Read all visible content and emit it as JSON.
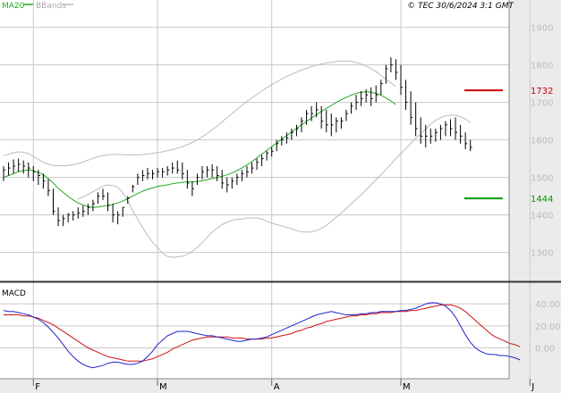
{
  "header": {
    "legend_ma": "MA20",
    "legend_bbands": "BBands",
    "copyright": "© TEC 30/6/2024 3:1 GMT"
  },
  "colors": {
    "ma": "#22aa22",
    "bbands": "#bbbbbb",
    "price": "#000000",
    "resistance": "#cc0000",
    "support": "#009900",
    "macd": "#2222cc",
    "signal": "#cc1111",
    "grid": "#c8c8c8",
    "axis_bg": "#ebebeb"
  },
  "price_panel": {
    "yticks": [
      1300,
      1400,
      1500,
      1600,
      1700,
      1800,
      1900
    ],
    "ylim": [
      1230,
      1930
    ],
    "levels": [
      {
        "name": "resistance",
        "value": 1732,
        "label": "1732"
      },
      {
        "name": "support",
        "value": 1444,
        "label": "1444"
      }
    ]
  },
  "macd_panel": {
    "title": "MACD",
    "yticks": [
      0,
      20,
      40
    ],
    "ytick_labels": [
      "0.00",
      "20.00",
      "40.00"
    ],
    "ylim": [
      -28,
      58
    ]
  },
  "xaxis": {
    "labels": [
      "F",
      "M",
      "A",
      "M",
      "J",
      "J"
    ],
    "label_index": [
      6,
      31,
      54,
      80,
      106,
      132
    ]
  },
  "chart_data": {
    "type": "line",
    "price": {
      "name": "Price",
      "high": [
        1530,
        1540,
        1548,
        1550,
        1545,
        1540,
        1530,
        1520,
        1510,
        1495,
        1470,
        1420,
        1400,
        1405,
        1410,
        1420,
        1425,
        1430,
        1440,
        1460,
        1470,
        1460,
        1430,
        1410,
        1420,
        1450,
        1480,
        1510,
        1520,
        1525,
        1520,
        1525,
        1525,
        1530,
        1540,
        1545,
        1540,
        1520,
        1490,
        1510,
        1530,
        1530,
        1535,
        1530,
        1520,
        1500,
        1500,
        1510,
        1520,
        1530,
        1540,
        1550,
        1560,
        1570,
        1580,
        1600,
        1610,
        1620,
        1630,
        1640,
        1660,
        1680,
        1690,
        1700,
        1690,
        1680,
        1670,
        1660,
        1660,
        1680,
        1700,
        1720,
        1730,
        1735,
        1740,
        1745,
        1760,
        1800,
        1820,
        1815,
        1800,
        1760,
        1730,
        1700,
        1660,
        1640,
        1630,
        1630,
        1640,
        1650,
        1655,
        1660,
        1640,
        1620,
        1600
      ],
      "low": [
        1490,
        1505,
        1510,
        1515,
        1510,
        1500,
        1490,
        1480,
        1470,
        1450,
        1400,
        1370,
        1370,
        1380,
        1385,
        1390,
        1395,
        1400,
        1410,
        1430,
        1440,
        1410,
        1380,
        1375,
        1395,
        1430,
        1460,
        1480,
        1490,
        1495,
        1495,
        1500,
        1500,
        1505,
        1510,
        1510,
        1495,
        1470,
        1450,
        1480,
        1495,
        1500,
        1500,
        1490,
        1470,
        1460,
        1470,
        1480,
        1490,
        1500,
        1510,
        1520,
        1530,
        1545,
        1555,
        1570,
        1585,
        1590,
        1600,
        1610,
        1620,
        1640,
        1650,
        1660,
        1630,
        1620,
        1610,
        1620,
        1630,
        1650,
        1670,
        1680,
        1690,
        1700,
        1690,
        1700,
        1720,
        1750,
        1780,
        1760,
        1720,
        1680,
        1640,
        1610,
        1590,
        1580,
        1590,
        1595,
        1600,
        1610,
        1610,
        1600,
        1590,
        1575,
        1570
      ],
      "close": [
        1520,
        1525,
        1530,
        1535,
        1530,
        1525,
        1515,
        1505,
        1490,
        1465,
        1410,
        1385,
        1390,
        1400,
        1400,
        1405,
        1410,
        1420,
        1430,
        1450,
        1450,
        1425,
        1400,
        1400,
        1420,
        1445,
        1475,
        1500,
        1505,
        1510,
        1510,
        1515,
        1515,
        1520,
        1525,
        1520,
        1510,
        1485,
        1470,
        1500,
        1515,
        1520,
        1520,
        1505,
        1485,
        1480,
        1490,
        1500,
        1510,
        1515,
        1525,
        1540,
        1550,
        1565,
        1570,
        1590,
        1600,
        1605,
        1620,
        1630,
        1650,
        1670,
        1670,
        1680,
        1650,
        1640,
        1640,
        1650,
        1650,
        1670,
        1690,
        1700,
        1710,
        1720,
        1710,
        1720,
        1750,
        1790,
        1800,
        1780,
        1740,
        1700,
        1660,
        1630,
        1610,
        1610,
        1610,
        1620,
        1630,
        1640,
        1630,
        1620,
        1610,
        1590,
        1580
      ]
    },
    "ma20": {
      "name": "MA20",
      "values": [
        1500,
        1505,
        1510,
        1515,
        1518,
        1520,
        1518,
        1513,
        1507,
        1497,
        1485,
        1471,
        1460,
        1449,
        1440,
        1432,
        1427,
        1422,
        1420,
        1421,
        1423,
        1425,
        1428,
        1432,
        1437,
        1443,
        1450,
        1457,
        1463,
        1468,
        1472,
        1476,
        1478,
        1480,
        1483,
        1485,
        1487,
        1488,
        1488,
        1489,
        1491,
        1494,
        1497,
        1500,
        1503,
        1507,
        1512,
        1518,
        1525,
        1533,
        1542,
        1552,
        1562,
        1572,
        1582,
        1592,
        1602,
        1611,
        1621,
        1631,
        1640,
        1649,
        1658,
        1667,
        1676,
        1684,
        1692,
        1700,
        1707,
        1713,
        1719,
        1724,
        1727,
        1728,
        1727,
        1724,
        1719,
        1712,
        1704,
        1694
      ],
      "start": 0
    },
    "bb_upper": {
      "name": "BBands upper",
      "values": [
        1558,
        1562,
        1566,
        1568,
        1567,
        1563,
        1556,
        1548,
        1540,
        1535,
        1532,
        1531,
        1531,
        1532,
        1534,
        1537,
        1541,
        1546,
        1551,
        1555,
        1558,
        1560,
        1561,
        1561,
        1561,
        1560,
        1560,
        1560,
        1561,
        1562,
        1564,
        1566,
        1568,
        1571,
        1574,
        1578,
        1582,
        1587,
        1593,
        1600,
        1608,
        1617,
        1627,
        1637,
        1648,
        1659,
        1670,
        1681,
        1692,
        1702,
        1712,
        1721,
        1730,
        1739,
        1747,
        1755,
        1762,
        1769,
        1775,
        1781,
        1786,
        1791,
        1795,
        1799,
        1802,
        1805,
        1807,
        1809,
        1810,
        1810,
        1809,
        1806,
        1802,
        1797,
        1790,
        1782,
        1772,
        1762,
        1752,
        1742
      ],
      "start": 0
    },
    "bb_lower": {
      "name": "BBands lower",
      "values": [
        1442,
        1448,
        1454,
        1462,
        1469,
        1477,
        1480,
        1478,
        1474,
        1459,
        1438,
        1411,
        1389,
        1366,
        1346,
        1327,
        1313,
        1298,
        1289,
        1287,
        1288,
        1290,
        1295,
        1303,
        1313,
        1326,
        1340,
        1354,
        1365,
        1374,
        1380,
        1386,
        1388,
        1389,
        1392,
        1392,
        1392,
        1389,
        1383,
        1378,
        1374,
        1371,
        1367,
        1363,
        1358,
        1355,
        1354,
        1355,
        1358,
        1364,
        1372,
        1383,
        1394,
        1405,
        1417,
        1429,
        1442,
        1453,
        1467,
        1481,
        1494,
        1507,
        1521,
        1535,
        1550,
        1563,
        1577,
        1591,
        1604,
        1616,
        1629,
        1642,
        1652,
        1659,
        1664,
        1666,
        1666,
        1662,
        1656,
        1646
      ],
      "start": 15
    },
    "macd": {
      "name": "MACD",
      "values": [
        34,
        33,
        33,
        32,
        31,
        30,
        28,
        26,
        23,
        19,
        14,
        9,
        3,
        -3,
        -8,
        -12,
        -15,
        -17,
        -18,
        -17,
        -16,
        -14,
        -13,
        -13,
        -14,
        -15,
        -15,
        -14,
        -12,
        -8,
        -3,
        3,
        7,
        11,
        13,
        15,
        15,
        15,
        14,
        13,
        12,
        11,
        11,
        10,
        9,
        8,
        7,
        6,
        6,
        7,
        8,
        8,
        9,
        10,
        12,
        14,
        16,
        18,
        20,
        22,
        24,
        26,
        28,
        30,
        31,
        32,
        33,
        32,
        31,
        30,
        30,
        30,
        31,
        31,
        32,
        32,
        33,
        33,
        33,
        33,
        34,
        34,
        35,
        36,
        38,
        40,
        41,
        41,
        40,
        38,
        34,
        28,
        20,
        12,
        5,
        0,
        -3,
        -5,
        -6,
        -6,
        -7,
        -7,
        -8,
        -9,
        -11
      ],
      "start": 0
    },
    "signal": {
      "name": "Signal",
      "values": [
        30,
        30,
        30,
        30,
        29,
        29,
        28,
        27,
        25,
        23,
        21,
        18,
        15,
        12,
        9,
        6,
        3,
        0,
        -2,
        -4,
        -6,
        -8,
        -9,
        -10,
        -11,
        -12,
        -12,
        -12,
        -12,
        -11,
        -10,
        -8,
        -6,
        -4,
        -1,
        1,
        3,
        5,
        7,
        8,
        9,
        10,
        10,
        10,
        10,
        10,
        9,
        9,
        9,
        8,
        8,
        8,
        8,
        9,
        9,
        10,
        11,
        12,
        13,
        15,
        16,
        18,
        19,
        21,
        22,
        24,
        25,
        26,
        27,
        28,
        29,
        29,
        30,
        30,
        31,
        31,
        32,
        32,
        32,
        33,
        33,
        33,
        34,
        34,
        35,
        36,
        37,
        38,
        39,
        39,
        39,
        38,
        36,
        33,
        29,
        25,
        21,
        17,
        13,
        10,
        8,
        6,
        4,
        3,
        1
      ],
      "start": 0
    }
  }
}
